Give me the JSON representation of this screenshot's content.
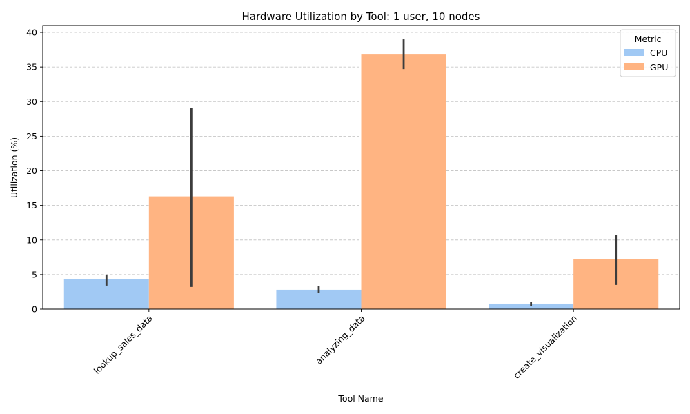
{
  "chart_data": {
    "type": "bar",
    "title": "Hardware Utilization by Tool: 1 user, 10 nodes",
    "xlabel": "Tool Name",
    "ylabel": "Utilization (%)",
    "categories": [
      "lookup_sales_data",
      "analyzing_data",
      "create_visualization"
    ],
    "ylim": [
      0,
      41
    ],
    "yticks": [
      0,
      5,
      10,
      15,
      20,
      25,
      30,
      35,
      40
    ],
    "grid": "horizontal dashed",
    "legend": {
      "title": "Metric",
      "placement": "top-right"
    },
    "series": [
      {
        "name": "CPU",
        "color": "#a1c9f4",
        "values": [
          4.3,
          2.8,
          0.8
        ],
        "error_low": [
          3.4,
          2.3,
          0.5
        ],
        "error_high": [
          5.0,
          3.3,
          1.0
        ]
      },
      {
        "name": "GPU",
        "color": "#ffb482",
        "values": [
          16.3,
          36.9,
          7.2
        ],
        "error_low": [
          3.2,
          34.7,
          3.5
        ],
        "error_high": [
          29.1,
          39.0,
          10.7
        ]
      }
    ]
  }
}
